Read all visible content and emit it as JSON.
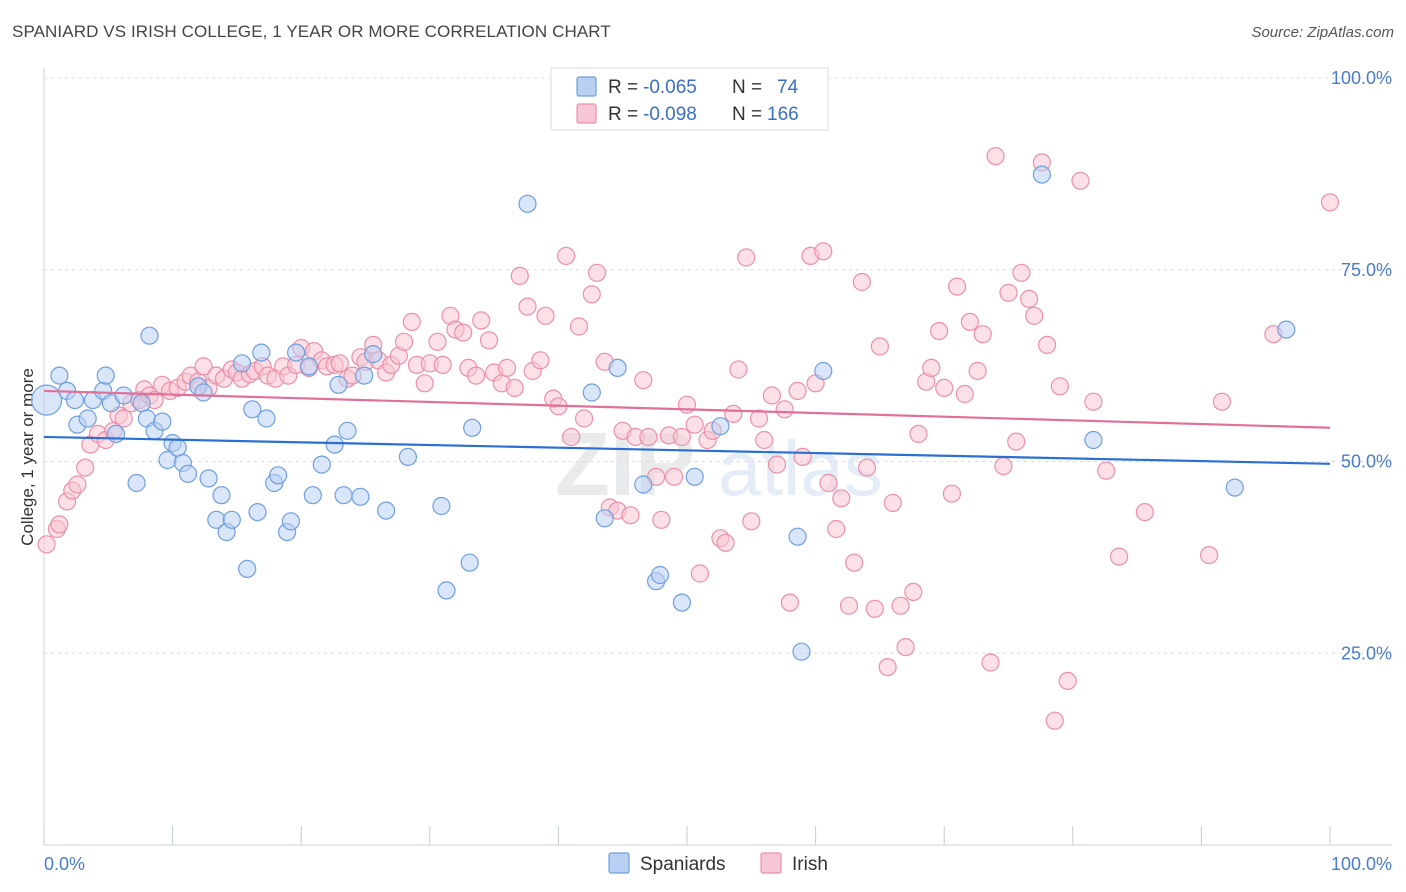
{
  "title": "SPANIARD VS IRISH COLLEGE, 1 YEAR OR MORE CORRELATION CHART",
  "source": "Source: ZipAtlas.com",
  "watermark": {
    "zip": "ZIP",
    "atlas": "atlas"
  },
  "chart_data": {
    "type": "scatter",
    "ylabel": "College, 1 year or more",
    "xlim": [
      0,
      100
    ],
    "ylim": [
      0,
      100
    ],
    "x_tick_labels": [
      "0.0%",
      "100.0%"
    ],
    "y_ticks": [
      25,
      50,
      75,
      100
    ],
    "y_tick_labels": [
      "25.0%",
      "50.0%",
      "75.0%",
      "100.0%"
    ],
    "legend": {
      "rows": [
        {
          "series": "Spaniards",
          "r_label": "R =",
          "r_value": "-0.065",
          "n_label": "N =",
          "n_value": "74"
        },
        {
          "series": "Irish",
          "r_label": "R =",
          "r_value": "-0.098",
          "n_label": "N =",
          "n_value": "166"
        }
      ]
    },
    "series": [
      {
        "name": "Spaniards",
        "color": "#6f9fe0",
        "fill": "#b9d0f3",
        "line_color": "#2a6fd1",
        "trend": [
          [
            0,
            53.2
          ],
          [
            100,
            49.7
          ]
        ],
        "points": [
          [
            0.2,
            58
          ],
          [
            1.2,
            61.2
          ],
          [
            1.8,
            59.2
          ],
          [
            2.4,
            58
          ],
          [
            2.6,
            54.8
          ],
          [
            3.4,
            55.6
          ],
          [
            3.8,
            58
          ],
          [
            4.6,
            59.2
          ],
          [
            4.8,
            61.2
          ],
          [
            5.2,
            57.6
          ],
          [
            5.6,
            53.6
          ],
          [
            6.2,
            58.6
          ],
          [
            7.2,
            47.2
          ],
          [
            7.6,
            57.6
          ],
          [
            8.0,
            55.6
          ],
          [
            8.2,
            66.4
          ],
          [
            8.6,
            54.0
          ],
          [
            9.2,
            55.2
          ],
          [
            9.6,
            50.2
          ],
          [
            10.0,
            52.4
          ],
          [
            10.4,
            51.8
          ],
          [
            10.8,
            49.8
          ],
          [
            11.2,
            48.4
          ],
          [
            12.0,
            59.8
          ],
          [
            12.4,
            59.0
          ],
          [
            12.8,
            47.8
          ],
          [
            13.4,
            42.4
          ],
          [
            13.8,
            45.6
          ],
          [
            14.2,
            40.8
          ],
          [
            14.6,
            42.4
          ],
          [
            15.4,
            62.8
          ],
          [
            15.8,
            36.0
          ],
          [
            16.2,
            56.8
          ],
          [
            16.6,
            43.4
          ],
          [
            16.9,
            64.2
          ],
          [
            17.3,
            55.6
          ],
          [
            17.9,
            47.2
          ],
          [
            18.2,
            48.2
          ],
          [
            18.9,
            40.8
          ],
          [
            19.2,
            42.2
          ],
          [
            19.6,
            64.2
          ],
          [
            20.6,
            62.4
          ],
          [
            20.9,
            45.6
          ],
          [
            21.6,
            49.6
          ],
          [
            22.6,
            52.2
          ],
          [
            22.9,
            60.0
          ],
          [
            23.3,
            45.6
          ],
          [
            23.6,
            54.0
          ],
          [
            24.6,
            45.4
          ],
          [
            24.9,
            61.2
          ],
          [
            25.6,
            64.0
          ],
          [
            26.6,
            43.6
          ],
          [
            28.3,
            50.6
          ],
          [
            30.9,
            44.2
          ],
          [
            31.3,
            33.2
          ],
          [
            33.1,
            36.8
          ],
          [
            33.3,
            54.4
          ],
          [
            37.6,
            83.6
          ],
          [
            42.6,
            59.0
          ],
          [
            43.6,
            42.6
          ],
          [
            44.6,
            62.2
          ],
          [
            46.6,
            47.0
          ],
          [
            47.6,
            34.4
          ],
          [
            47.9,
            35.2
          ],
          [
            49.6,
            31.6
          ],
          [
            50.6,
            48.0
          ],
          [
            52.6,
            54.6
          ],
          [
            58.6,
            40.2
          ],
          [
            58.9,
            25.2
          ],
          [
            60.6,
            61.8
          ],
          [
            77.6,
            87.4
          ],
          [
            81.6,
            52.8
          ],
          [
            92.6,
            46.6
          ],
          [
            96.6,
            67.2
          ]
        ]
      },
      {
        "name": "Irish",
        "color": "#ec8faa",
        "fill": "#f7c6d4",
        "line_color": "#e0709a",
        "trend": [
          [
            0,
            59.2
          ],
          [
            100,
            54.4
          ]
        ],
        "points": [
          [
            0.2,
            39.2
          ],
          [
            1.0,
            41.2
          ],
          [
            1.2,
            41.8
          ],
          [
            1.8,
            44.8
          ],
          [
            2.2,
            46.2
          ],
          [
            2.6,
            47.0
          ],
          [
            3.2,
            49.2
          ],
          [
            3.6,
            52.2
          ],
          [
            4.2,
            53.6
          ],
          [
            4.8,
            52.8
          ],
          [
            5.4,
            54.0
          ],
          [
            5.8,
            56.0
          ],
          [
            6.2,
            55.6
          ],
          [
            6.8,
            57.6
          ],
          [
            7.4,
            58.0
          ],
          [
            7.8,
            59.4
          ],
          [
            8.2,
            58.6
          ],
          [
            8.6,
            58.0
          ],
          [
            9.2,
            60.0
          ],
          [
            9.8,
            59.2
          ],
          [
            10.4,
            59.6
          ],
          [
            11.0,
            60.4
          ],
          [
            11.4,
            61.2
          ],
          [
            12.0,
            60.4
          ],
          [
            12.4,
            62.4
          ],
          [
            12.8,
            59.6
          ],
          [
            13.4,
            61.2
          ],
          [
            14.0,
            60.8
          ],
          [
            14.6,
            62.0
          ],
          [
            15.0,
            61.6
          ],
          [
            15.4,
            60.8
          ],
          [
            16.0,
            61.4
          ],
          [
            16.4,
            61.8
          ],
          [
            17.0,
            62.4
          ],
          [
            17.4,
            61.2
          ],
          [
            18.0,
            60.8
          ],
          [
            18.6,
            62.4
          ],
          [
            19.0,
            61.2
          ],
          [
            19.6,
            62.6
          ],
          [
            20.0,
            64.8
          ],
          [
            20.6,
            62.2
          ],
          [
            21.0,
            64.4
          ],
          [
            21.6,
            63.2
          ],
          [
            22.0,
            62.4
          ],
          [
            22.6,
            62.6
          ],
          [
            23.0,
            62.8
          ],
          [
            23.6,
            60.8
          ],
          [
            24.0,
            61.2
          ],
          [
            24.6,
            63.6
          ],
          [
            25.0,
            63.0
          ],
          [
            25.6,
            65.2
          ],
          [
            26.0,
            63.2
          ],
          [
            26.6,
            61.6
          ],
          [
            27.0,
            62.6
          ],
          [
            27.6,
            63.8
          ],
          [
            28.0,
            65.6
          ],
          [
            28.6,
            68.2
          ],
          [
            29.0,
            62.6
          ],
          [
            29.6,
            60.2
          ],
          [
            30.0,
            62.8
          ],
          [
            30.6,
            65.6
          ],
          [
            31.0,
            62.6
          ],
          [
            31.6,
            69.0
          ],
          [
            32.0,
            67.2
          ],
          [
            32.6,
            66.8
          ],
          [
            33.0,
            62.2
          ],
          [
            33.6,
            61.2
          ],
          [
            34.0,
            68.4
          ],
          [
            34.6,
            65.8
          ],
          [
            35.0,
            61.6
          ],
          [
            35.6,
            60.2
          ],
          [
            36.0,
            62.2
          ],
          [
            36.6,
            59.6
          ],
          [
            37.0,
            74.2
          ],
          [
            37.6,
            70.2
          ],
          [
            38.0,
            61.8
          ],
          [
            38.6,
            63.2
          ],
          [
            39.0,
            69.0
          ],
          [
            39.6,
            58.2
          ],
          [
            40.0,
            57.2
          ],
          [
            40.6,
            76.8
          ],
          [
            41.0,
            53.2
          ],
          [
            41.6,
            67.6
          ],
          [
            42.0,
            55.6
          ],
          [
            42.6,
            71.8
          ],
          [
            43.0,
            74.6
          ],
          [
            43.6,
            63.0
          ],
          [
            44.0,
            44.0
          ],
          [
            44.6,
            43.6
          ],
          [
            45.0,
            54.0
          ],
          [
            45.6,
            43.0
          ],
          [
            46.0,
            53.2
          ],
          [
            46.6,
            60.6
          ],
          [
            47.0,
            53.2
          ],
          [
            47.6,
            48.0
          ],
          [
            48.0,
            42.4
          ],
          [
            48.6,
            53.4
          ],
          [
            49.0,
            48.0
          ],
          [
            49.6,
            53.2
          ],
          [
            50.0,
            57.4
          ],
          [
            50.6,
            54.8
          ],
          [
            51.0,
            35.4
          ],
          [
            51.6,
            52.8
          ],
          [
            52.0,
            54.0
          ],
          [
            52.6,
            40.0
          ],
          [
            53.0,
            39.4
          ],
          [
            53.6,
            56.2
          ],
          [
            54.0,
            62.0
          ],
          [
            54.6,
            76.6
          ],
          [
            55.0,
            42.2
          ],
          [
            55.6,
            55.6
          ],
          [
            56.0,
            52.8
          ],
          [
            56.6,
            58.6
          ],
          [
            57.0,
            49.6
          ],
          [
            57.6,
            56.8
          ],
          [
            58.0,
            31.6
          ],
          [
            58.6,
            59.2
          ],
          [
            59.0,
            50.6
          ],
          [
            59.6,
            76.8
          ],
          [
            60.0,
            60.2
          ],
          [
            60.6,
            77.4
          ],
          [
            61.0,
            47.2
          ],
          [
            61.6,
            41.2
          ],
          [
            62.0,
            45.2
          ],
          [
            62.6,
            31.2
          ],
          [
            63.0,
            36.8
          ],
          [
            63.6,
            73.4
          ],
          [
            64.0,
            49.2
          ],
          [
            64.6,
            30.8
          ],
          [
            65.0,
            65.0
          ],
          [
            65.6,
            23.2
          ],
          [
            66.0,
            44.6
          ],
          [
            66.6,
            31.2
          ],
          [
            67.0,
            25.8
          ],
          [
            67.6,
            33.0
          ],
          [
            68.0,
            53.6
          ],
          [
            68.6,
            60.4
          ],
          [
            69.0,
            62.2
          ],
          [
            69.6,
            67.0
          ],
          [
            70.0,
            59.6
          ],
          [
            70.6,
            45.8
          ],
          [
            71.0,
            72.8
          ],
          [
            71.6,
            58.8
          ],
          [
            72.0,
            68.2
          ],
          [
            72.6,
            61.8
          ],
          [
            73.0,
            66.6
          ],
          [
            73.6,
            23.8
          ],
          [
            74.0,
            89.8
          ],
          [
            74.6,
            49.4
          ],
          [
            75.0,
            72.0
          ],
          [
            75.6,
            52.6
          ],
          [
            76.0,
            74.6
          ],
          [
            76.6,
            71.2
          ],
          [
            77.0,
            69.0
          ],
          [
            77.6,
            89.0
          ],
          [
            78.0,
            65.2
          ],
          [
            78.6,
            16.2
          ],
          [
            79.0,
            59.8
          ],
          [
            79.6,
            21.4
          ],
          [
            80.6,
            86.6
          ],
          [
            81.6,
            57.8
          ],
          [
            82.6,
            48.8
          ],
          [
            83.6,
            37.6
          ],
          [
            85.6,
            43.4
          ],
          [
            90.6,
            37.8
          ],
          [
            91.6,
            57.8
          ],
          [
            95.6,
            66.6
          ],
          [
            100.0,
            83.8
          ]
        ]
      }
    ]
  }
}
